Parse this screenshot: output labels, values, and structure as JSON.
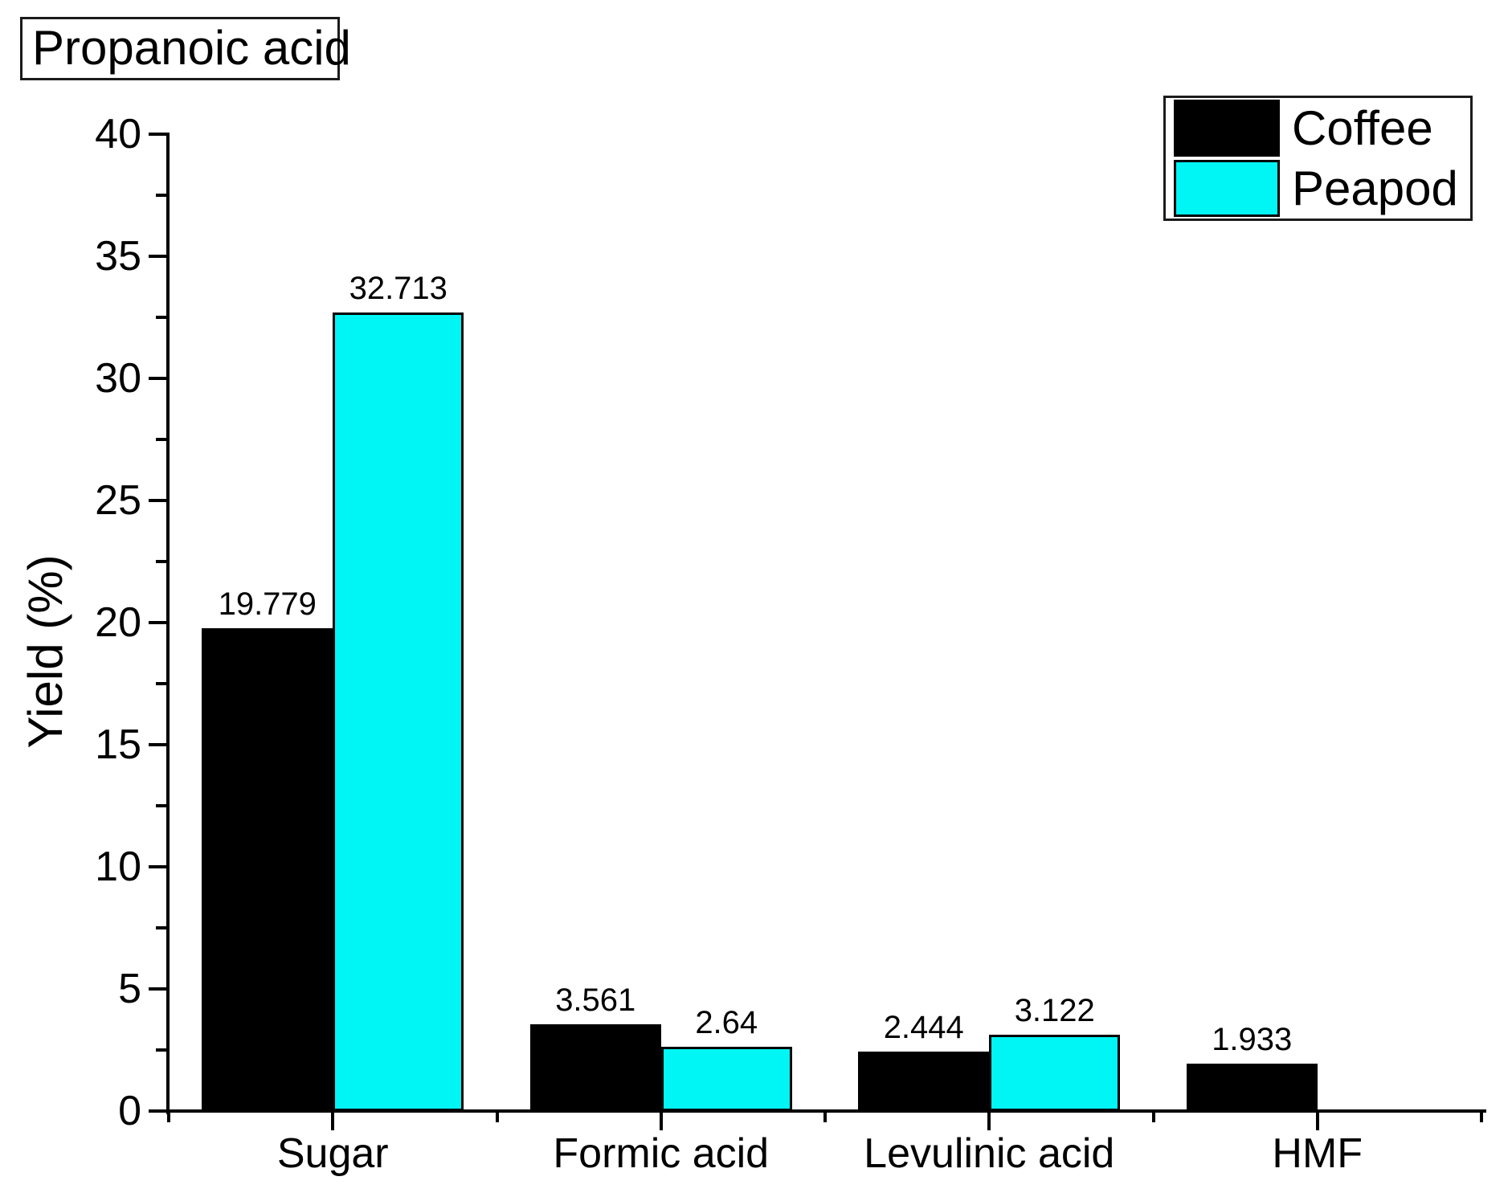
{
  "title": "Propanoic acid",
  "chart_data": {
    "type": "bar",
    "categories": [
      "Sugar",
      "Formic acid",
      "Levulinic acid",
      "HMF"
    ],
    "series": [
      {
        "name": "Coffee",
        "color": "#000000",
        "values": [
          19.779,
          3.561,
          2.444,
          1.933
        ],
        "labels": [
          "19.779",
          "3.561",
          "2.444",
          "1.933"
        ]
      },
      {
        "name": "Peapod",
        "color": "#00F5F5",
        "values": [
          32.713,
          2.64,
          3.122,
          null
        ],
        "labels": [
          "32.713",
          "2.64",
          "3.122",
          null
        ]
      }
    ],
    "xlabel": "",
    "ylabel": "Yield (%)",
    "ylim": [
      0,
      40
    ],
    "y_major_step": 5,
    "y_minor_step": 2.5,
    "y_tick_labels": [
      "0",
      "5",
      "10",
      "15",
      "20",
      "25",
      "30",
      "35",
      "40"
    ],
    "grid": false,
    "legend_position": "top-right",
    "bar_value_labels": true
  }
}
